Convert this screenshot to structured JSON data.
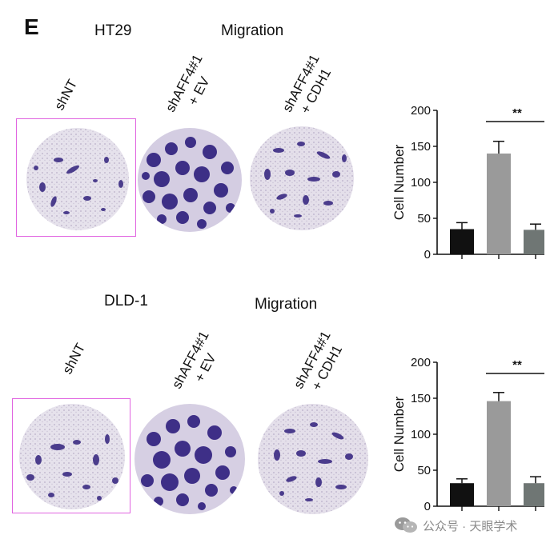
{
  "panel_label": "E",
  "rows": [
    {
      "cell_line": "HT29",
      "assay": "Migration",
      "conditions": [
        "shNT",
        "shAFF4#1\n+ EV",
        "shAFF4#1\n+ CDH1"
      ]
    },
    {
      "cell_line": "DLD-1",
      "assay": "Migration",
      "conditions": [
        "shNT",
        "shAFF4#1\n+ EV",
        "shAFF4#1\n+ CDH1"
      ]
    }
  ],
  "chart_data": [
    {
      "type": "bar",
      "ylabel": "Cell Number",
      "ylim": [
        0,
        200
      ],
      "yticks": [
        0,
        50,
        100,
        150,
        200
      ],
      "categories": [
        "shNT",
        "shAFF4#1 + EV",
        "shAFF4#1 + CDH1"
      ],
      "values": [
        35,
        140,
        34
      ],
      "errors": [
        9,
        17,
        8
      ],
      "bar_colors": [
        "#111111",
        "#9a9a9a",
        "#6f7674"
      ],
      "significance": {
        "from": 1,
        "to": 2,
        "label": "**"
      }
    },
    {
      "type": "bar",
      "ylabel": "Cell Number",
      "ylim": [
        0,
        200
      ],
      "yticks": [
        0,
        50,
        100,
        150,
        200
      ],
      "categories": [
        "shNT",
        "shAFF4#1 + EV",
        "shAFF4#1 + CDH1"
      ],
      "values": [
        32,
        146,
        32
      ],
      "errors": [
        6,
        12,
        9
      ],
      "bar_colors": [
        "#111111",
        "#9a9a9a",
        "#6f7674"
      ],
      "significance": {
        "from": 1,
        "to": 2,
        "label": "**"
      }
    }
  ],
  "watermark": {
    "text": "公众号 · 天眼学术",
    "icon": "wechat-icon"
  }
}
